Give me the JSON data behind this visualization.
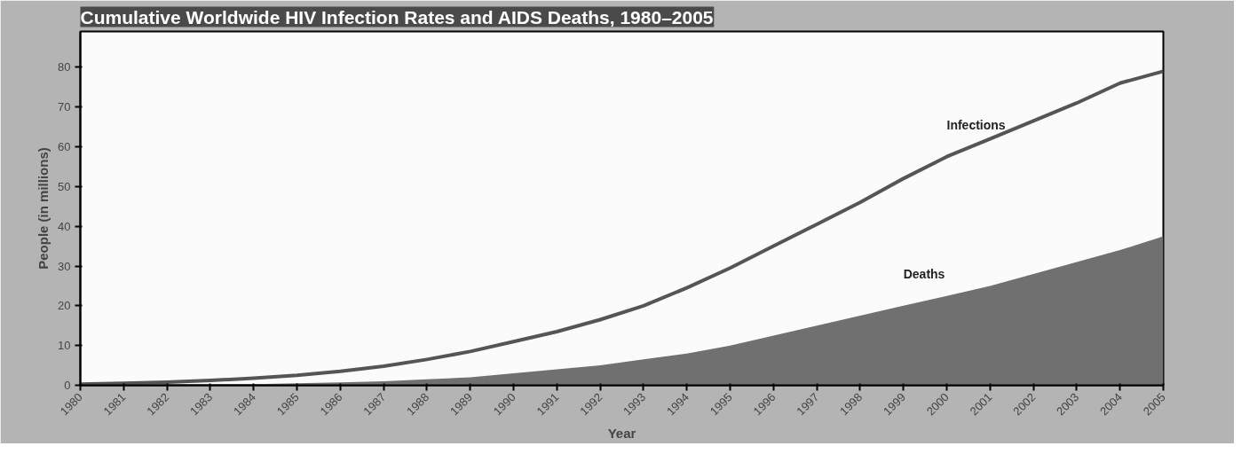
{
  "chart_data": {
    "type": "area",
    "title": "Cumulative Worldwide HIV Infection Rates and AIDS Deaths, 1980–2005",
    "xlabel": "Year",
    "ylabel": "People (in millions)",
    "x": [
      1980,
      1981,
      1982,
      1983,
      1984,
      1985,
      1986,
      1987,
      1988,
      1989,
      1990,
      1991,
      1992,
      1993,
      1994,
      1995,
      1996,
      1997,
      1998,
      1999,
      2000,
      2001,
      2002,
      2003,
      2004,
      2005
    ],
    "series": [
      {
        "name": "Infections",
        "type": "line",
        "color": "#555555",
        "values": [
          0.3,
          0.5,
          0.8,
          1.2,
          1.8,
          2.5,
          3.5,
          4.8,
          6.5,
          8.5,
          11,
          13.5,
          16.5,
          20,
          24.5,
          29.5,
          35,
          40.5,
          46,
          52,
          57.5,
          62,
          66.5,
          71,
          76,
          79
        ]
      },
      {
        "name": "Deaths",
        "color": "#707070",
        "values": [
          0.1,
          0.1,
          0.2,
          0.2,
          0.3,
          0.5,
          0.7,
          1,
          1.5,
          2,
          3,
          4,
          5,
          6.5,
          8,
          10,
          12.5,
          15,
          17.5,
          20,
          22.5,
          25,
          28,
          31,
          34,
          37.5
        ]
      }
    ],
    "xlim": [
      1980,
      2005
    ],
    "ylim": [
      0,
      89
    ],
    "xticks": [
      1980,
      1981,
      1982,
      1983,
      1984,
      1985,
      1986,
      1987,
      1988,
      1989,
      1990,
      1991,
      1992,
      1993,
      1994,
      1995,
      1996,
      1997,
      1998,
      1999,
      2000,
      2001,
      2002,
      2003,
      2004,
      2005
    ],
    "yticks": [
      0,
      10,
      20,
      30,
      40,
      50,
      60,
      70,
      80
    ],
    "grid": false
  }
}
